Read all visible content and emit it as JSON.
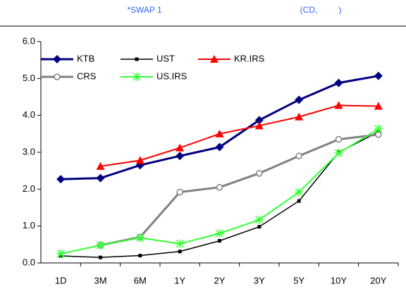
{
  "chart_data": {
    "type": "line",
    "title": "*SWAP 1",
    "subtitle": "(CD,         )",
    "categories": [
      "1D",
      "3M",
      "6M",
      "1Y",
      "2Y",
      "3Y",
      "5Y",
      "10Y",
      "20Y"
    ],
    "series": [
      {
        "name": "KTB",
        "color": "#000080",
        "marker": "diamond",
        "values": [
          2.27,
          2.3,
          2.65,
          2.9,
          3.14,
          3.87,
          4.42,
          4.88,
          5.07
        ]
      },
      {
        "name": "UST",
        "color": "#000000",
        "marker": "square",
        "values": [
          0.19,
          0.15,
          0.2,
          0.31,
          0.6,
          0.98,
          1.68,
          3.0,
          3.55
        ]
      },
      {
        "name": "KR.IRS",
        "color": "#ff0000",
        "marker": "triangle",
        "values": [
          null,
          2.62,
          2.78,
          3.12,
          3.5,
          3.72,
          3.96,
          4.27,
          4.25
        ]
      },
      {
        "name": "CRS",
        "color": "#808080",
        "marker": "circle",
        "values": [
          null,
          0.48,
          0.7,
          1.92,
          2.05,
          2.43,
          2.9,
          3.35,
          3.48
        ]
      },
      {
        "name": "US.IRS",
        "color": "#33ff33",
        "marker": "star",
        "values": [
          0.25,
          0.48,
          0.68,
          0.52,
          0.8,
          1.17,
          1.92,
          2.98,
          3.63
        ]
      }
    ],
    "ylim": [
      0,
      6
    ],
    "yticks": [
      {
        "value": 0,
        "label": "0.0"
      },
      {
        "value": 1,
        "label": "1.0"
      },
      {
        "value": 2,
        "label": "2.0"
      },
      {
        "value": 3,
        "label": "3.0"
      },
      {
        "value": 4,
        "label": "4.0"
      },
      {
        "value": 5,
        "label": "5.0"
      },
      {
        "value": 6,
        "label": "6.0"
      }
    ],
    "grid": false
  }
}
